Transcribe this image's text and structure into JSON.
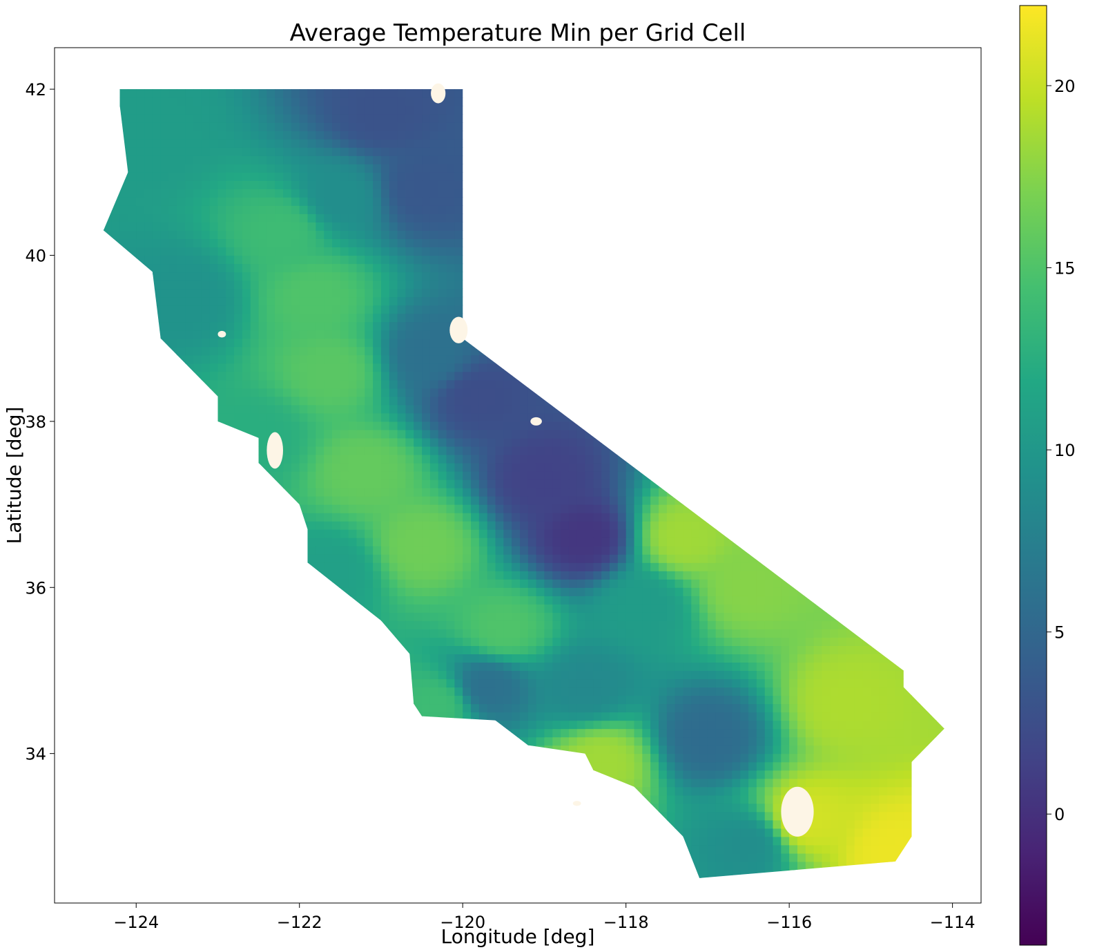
{
  "figure": {
    "title": "Average Temperature Min per Grid Cell",
    "xlabel": "Longitude [deg]",
    "ylabel": "Latitude [deg]"
  },
  "chart_data": {
    "type": "heatmap",
    "title": "Average Temperature Min per Grid Cell",
    "xlabel": "Longitude [deg]",
    "ylabel": "Latitude [deg]",
    "xlim": [
      -125.0,
      -113.65
    ],
    "ylim": [
      32.2,
      42.5
    ],
    "xticks": [
      -124,
      -122,
      -120,
      -118,
      -116,
      -114
    ],
    "xtick_labels": [
      "−124",
      "−122",
      "−120",
      "−118",
      "−116",
      "−114"
    ],
    "yticks": [
      34,
      36,
      38,
      40,
      42
    ],
    "ytick_labels": [
      "34",
      "36",
      "38",
      "40",
      "42"
    ],
    "colormap": "viridis",
    "colorbar": {
      "min": -3.6,
      "max": 22.2,
      "ticks": [
        0,
        5,
        10,
        15,
        20
      ],
      "tick_labels": [
        "0",
        "5",
        "10",
        "15",
        "20"
      ]
    },
    "grid": false,
    "missing_color": "#fdf5e6",
    "region": "California",
    "outline": [
      [
        -124.2,
        42.0
      ],
      [
        -120.0,
        42.0
      ],
      [
        -120.0,
        39.0
      ],
      [
        -114.6,
        35.0
      ],
      [
        -114.6,
        34.8
      ],
      [
        -114.1,
        34.3
      ],
      [
        -114.5,
        33.9
      ],
      [
        -114.5,
        33.0
      ],
      [
        -114.7,
        32.7
      ],
      [
        -117.1,
        32.5
      ],
      [
        -117.3,
        33.0
      ],
      [
        -117.9,
        33.6
      ],
      [
        -118.4,
        33.8
      ],
      [
        -118.5,
        34.0
      ],
      [
        -119.2,
        34.1
      ],
      [
        -119.6,
        34.4
      ],
      [
        -120.5,
        34.45
      ],
      [
        -120.6,
        34.6
      ],
      [
        -120.65,
        35.2
      ],
      [
        -121.0,
        35.6
      ],
      [
        -121.9,
        36.3
      ],
      [
        -121.9,
        36.7
      ],
      [
        -122.0,
        37.0
      ],
      [
        -122.5,
        37.5
      ],
      [
        -122.5,
        37.8
      ],
      [
        -123.0,
        38.0
      ],
      [
        -123.0,
        38.3
      ],
      [
        -123.7,
        39.0
      ],
      [
        -123.8,
        39.8
      ],
      [
        -124.4,
        40.3
      ],
      [
        -124.1,
        41.0
      ],
      [
        -124.2,
        41.8
      ]
    ],
    "value_anchors": [
      {
        "lon": -123.9,
        "lat": 41.5,
        "value": 10.5
      },
      {
        "lon": -121.0,
        "lat": 41.7,
        "value": 3.0
      },
      {
        "lon": -120.5,
        "lat": 40.8,
        "value": 3.5
      },
      {
        "lon": -121.5,
        "lat": 40.7,
        "value": 9.0
      },
      {
        "lon": -122.2,
        "lat": 40.3,
        "value": 14.0
      },
      {
        "lon": -121.8,
        "lat": 39.5,
        "value": 15.0
      },
      {
        "lon": -123.4,
        "lat": 39.5,
        "value": 9.5
      },
      {
        "lon": -121.6,
        "lat": 38.6,
        "value": 15.5
      },
      {
        "lon": -120.4,
        "lat": 38.8,
        "value": 6.0
      },
      {
        "lon": -119.8,
        "lat": 38.3,
        "value": 2.5
      },
      {
        "lon": -122.5,
        "lat": 37.8,
        "value": 12.5
      },
      {
        "lon": -121.2,
        "lat": 37.4,
        "value": 16.0
      },
      {
        "lon": -119.0,
        "lat": 37.3,
        "value": 1.5
      },
      {
        "lon": -118.5,
        "lat": 36.6,
        "value": 0.5
      },
      {
        "lon": -120.5,
        "lat": 36.5,
        "value": 16.5
      },
      {
        "lon": -121.6,
        "lat": 36.2,
        "value": 11.0
      },
      {
        "lon": -119.5,
        "lat": 35.5,
        "value": 15.0
      },
      {
        "lon": -117.3,
        "lat": 36.6,
        "value": 18.5
      },
      {
        "lon": -116.5,
        "lat": 36.0,
        "value": 17.5
      },
      {
        "lon": -117.8,
        "lat": 35.8,
        "value": 10.5
      },
      {
        "lon": -118.5,
        "lat": 34.8,
        "value": 8.5
      },
      {
        "lon": -119.7,
        "lat": 34.8,
        "value": 6.0
      },
      {
        "lon": -117.0,
        "lat": 34.2,
        "value": 5.5
      },
      {
        "lon": -115.3,
        "lat": 34.6,
        "value": 19.0
      },
      {
        "lon": -114.7,
        "lat": 32.8,
        "value": 21.5
      },
      {
        "lon": -116.5,
        "lat": 32.9,
        "value": 9.0
      },
      {
        "lon": -115.8,
        "lat": 33.2,
        "value": 20.5
      },
      {
        "lon": -118.3,
        "lat": 33.9,
        "value": 18.5
      },
      {
        "lon": -120.3,
        "lat": 34.6,
        "value": 14.0
      }
    ]
  }
}
